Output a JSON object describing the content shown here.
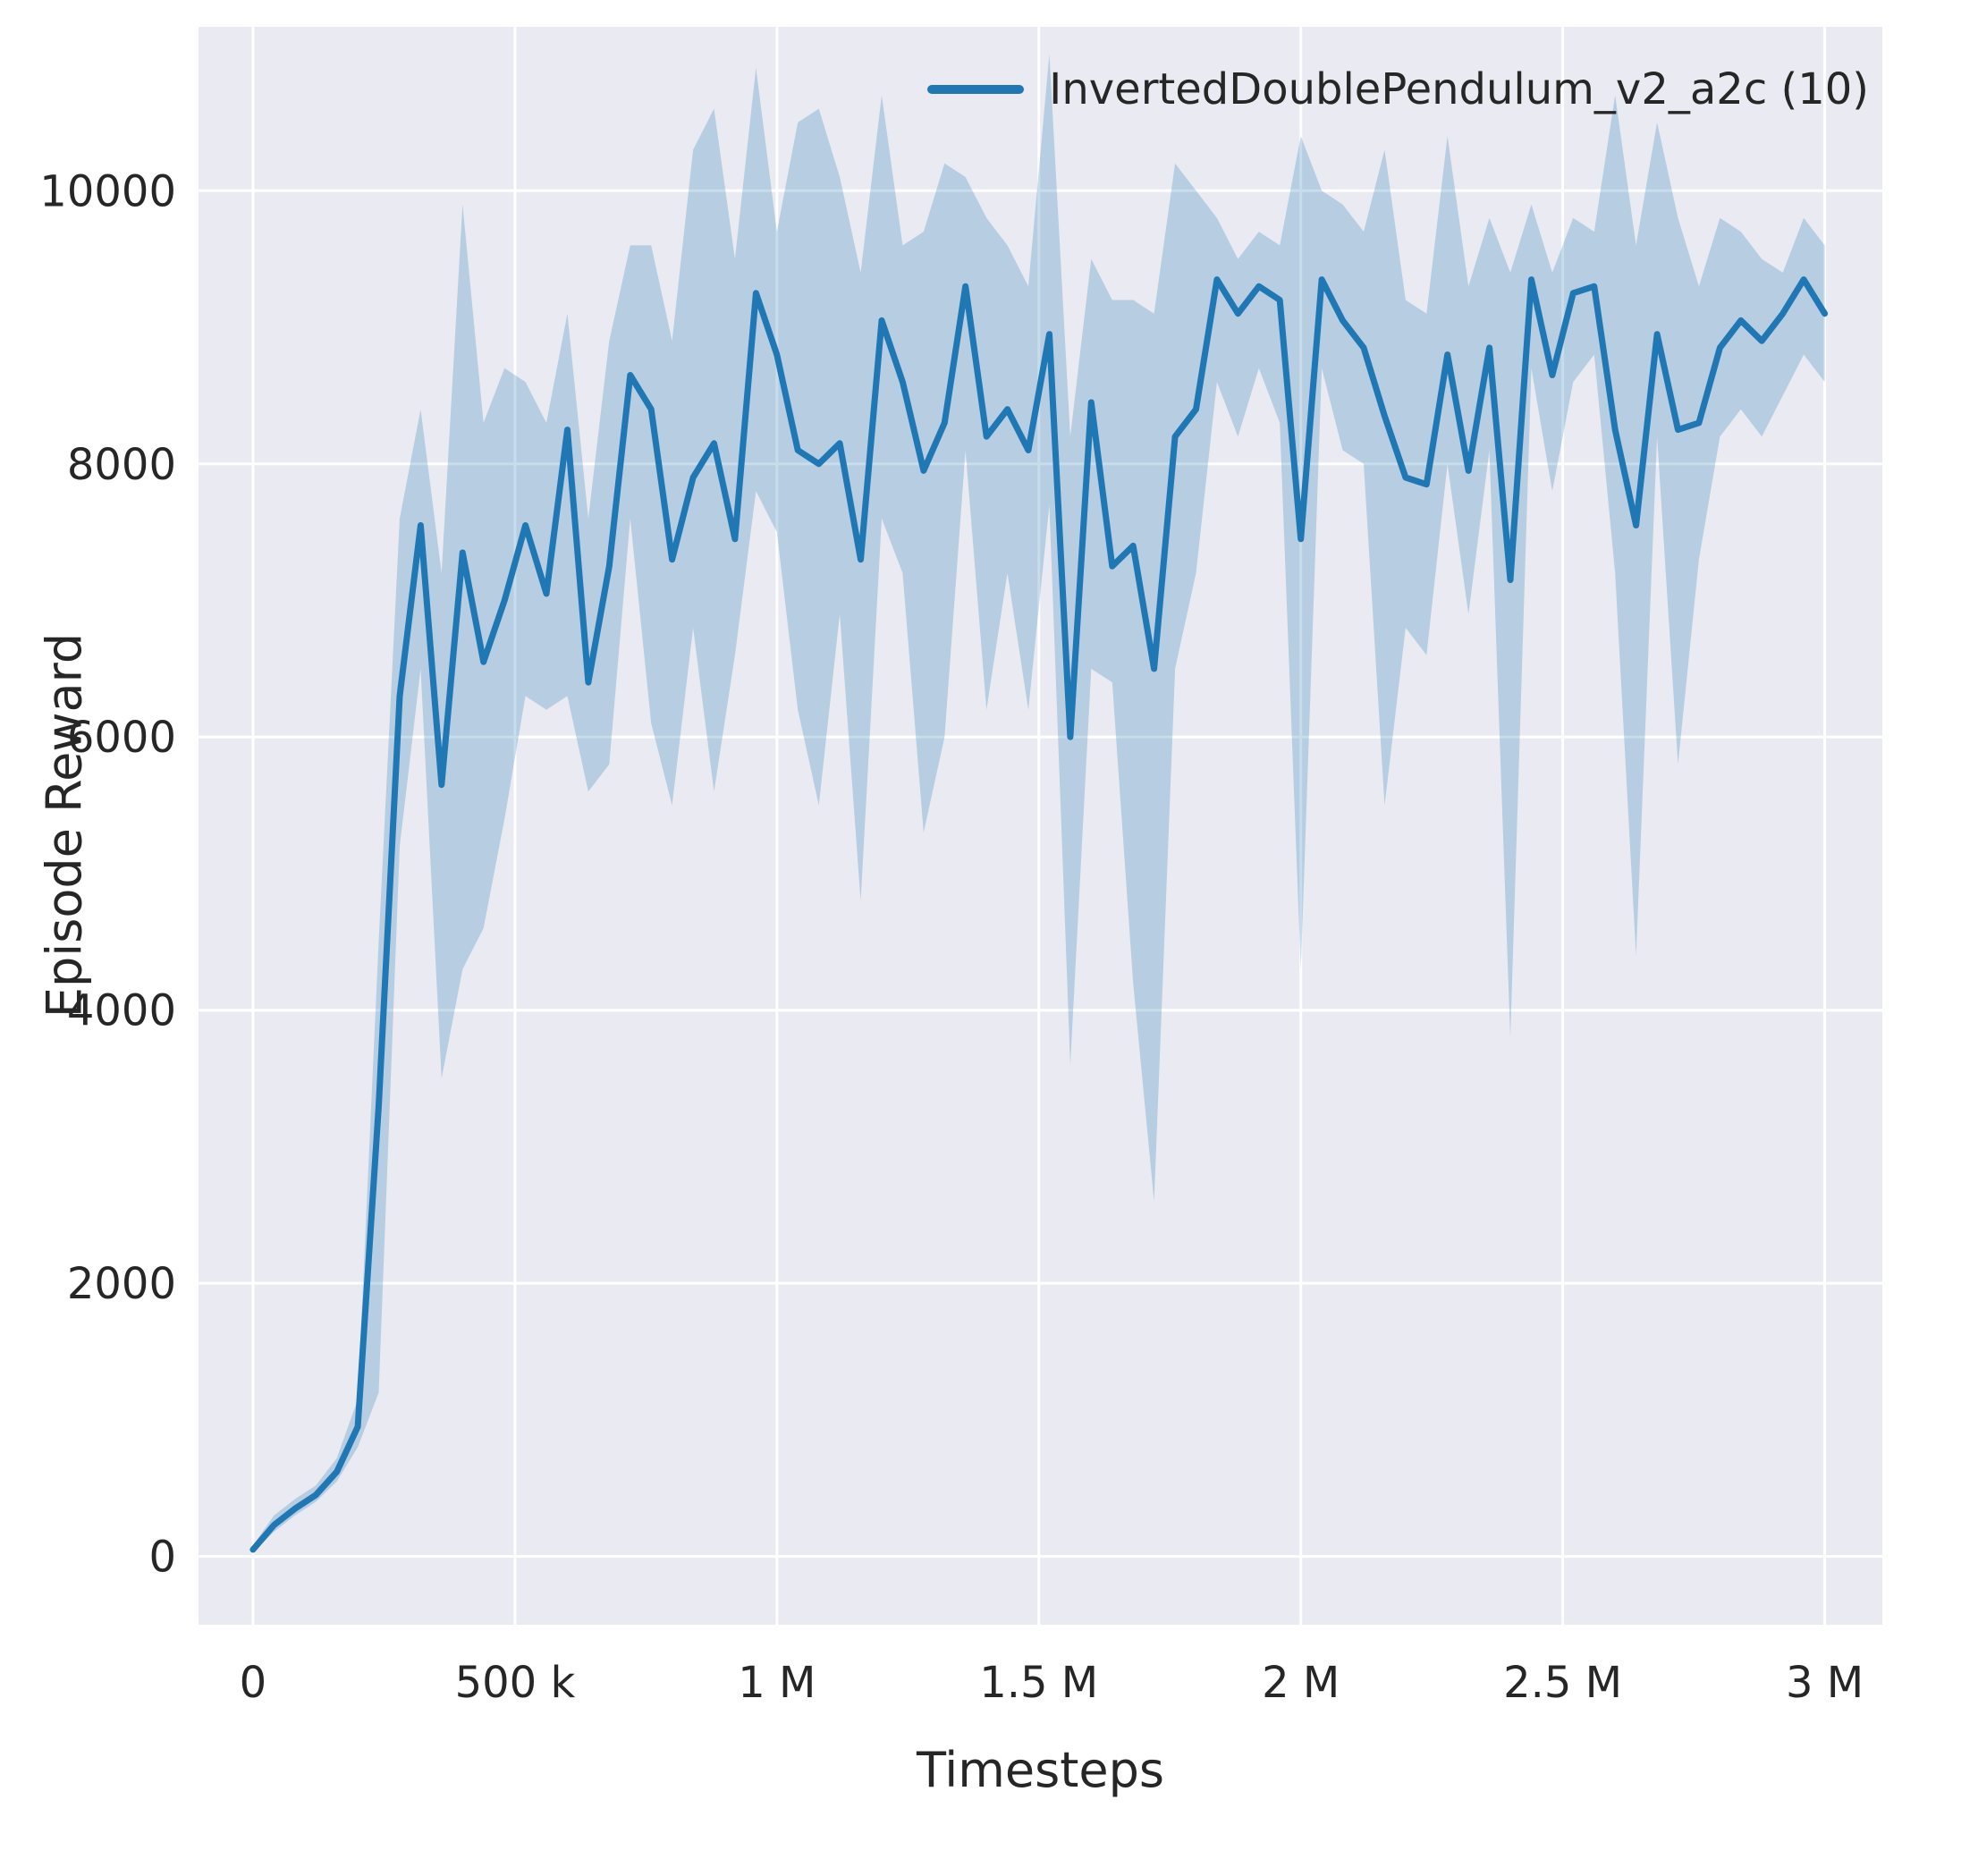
{
  "page": {
    "background": "#ffffff"
  },
  "chart_data": {
    "type": "line",
    "title": "",
    "xlabel": "Timesteps",
    "ylabel": "Episode Reward",
    "grid": true,
    "plot_background": "#eaeaf2",
    "grid_color": "#ffffff",
    "text_color": "#262626",
    "xlim": [
      -104000,
      3110000
    ],
    "ylim": [
      -500,
      11200
    ],
    "x_tick_values": [
      0,
      500000,
      1000000,
      1500000,
      2000000,
      2500000,
      3000000
    ],
    "x_tick_labels": [
      "0",
      "500 k",
      "1 M",
      "1.5 M",
      "2 M",
      "2.5 M",
      "3 M"
    ],
    "y_tick_values": [
      0,
      2000,
      4000,
      6000,
      8000,
      10000
    ],
    "y_tick_labels": [
      "0",
      "2000",
      "4000",
      "6000",
      "8000",
      "10000"
    ],
    "legend_position": "upper right",
    "legend": [
      {
        "label": "InvertedDoublePendulum_v2_a2c (10)",
        "color": "#1f77b4"
      }
    ],
    "series": [
      {
        "name": "InvertedDoublePendulum_v2_a2c (10)",
        "color": "#1f77b4",
        "band_color": "#1f77b4",
        "band_opacity": 0.25,
        "x": [
          0,
          40000,
          80000,
          120000,
          160000,
          200000,
          240000,
          280000,
          320000,
          360000,
          400000,
          440000,
          480000,
          520000,
          560000,
          600000,
          640000,
          680000,
          720000,
          760000,
          800000,
          840000,
          880000,
          920000,
          960000,
          1000000,
          1040000,
          1080000,
          1120000,
          1160000,
          1200000,
          1240000,
          1280000,
          1320000,
          1360000,
          1400000,
          1440000,
          1480000,
          1520000,
          1560000,
          1600000,
          1640000,
          1680000,
          1720000,
          1760000,
          1800000,
          1840000,
          1880000,
          1920000,
          1960000,
          2000000,
          2040000,
          2080000,
          2120000,
          2160000,
          2200000,
          2240000,
          2280000,
          2320000,
          2360000,
          2400000,
          2440000,
          2480000,
          2520000,
          2560000,
          2600000,
          2640000,
          2680000,
          2720000,
          2760000,
          2800000,
          2840000,
          2880000,
          2920000,
          2960000,
          3000000
        ],
        "mean": [
          50,
          230,
          350,
          450,
          620,
          950,
          3300,
          6300,
          7550,
          5650,
          7350,
          6550,
          7000,
          7550,
          7050,
          8250,
          6400,
          7250,
          8650,
          8400,
          7300,
          7900,
          8150,
          7450,
          9250,
          8800,
          8100,
          8000,
          8150,
          7300,
          9050,
          8600,
          7950,
          8300,
          9300,
          8200,
          8400,
          8100,
          8950,
          6000,
          8450,
          7250,
          7400,
          6500,
          8200,
          8400,
          9350,
          9100,
          9300,
          9200,
          7450,
          9350,
          9050,
          8850,
          8350,
          7900,
          7850,
          8800,
          7950,
          8850,
          7150,
          9350,
          8650,
          9250,
          9300,
          8250,
          7550,
          8950,
          8250,
          8300,
          8850,
          9050,
          8900,
          9100,
          9350,
          9100
        ],
        "band_low": [
          30,
          180,
          300,
          400,
          550,
          800,
          1200,
          5200,
          6500,
          3500,
          4300,
          4600,
          5400,
          6300,
          6200,
          6300,
          5600,
          5800,
          7600,
          6100,
          5500,
          6800,
          5600,
          6600,
          7800,
          7500,
          6200,
          5500,
          6900,
          4800,
          7600,
          7200,
          5300,
          6000,
          8100,
          6200,
          7200,
          6200,
          7700,
          3600,
          6500,
          6400,
          4200,
          2600,
          6500,
          7200,
          8600,
          8200,
          8700,
          8300,
          4300,
          8700,
          8100,
          8000,
          5500,
          6800,
          6600,
          8000,
          6900,
          8100,
          3800,
          8700,
          7800,
          8600,
          8800,
          7200,
          4400,
          8200,
          5800,
          7300,
          8200,
          8400,
          8200,
          8500,
          8800,
          8600
        ],
        "band_high": [
          80,
          300,
          420,
          520,
          720,
          1150,
          4500,
          7600,
          8400,
          7200,
          9900,
          8300,
          8700,
          8600,
          8300,
          9100,
          7600,
          8900,
          9600,
          9600,
          8900,
          10300,
          10600,
          9500,
          10900,
          9700,
          10500,
          10600,
          10100,
          9400,
          10700,
          9600,
          9700,
          10200,
          10100,
          9800,
          9600,
          9300,
          11000,
          8200,
          9500,
          9200,
          9200,
          9100,
          10200,
          10000,
          9800,
          9500,
          9700,
          9600,
          10400,
          10000,
          9900,
          9700,
          10300,
          9200,
          9100,
          10400,
          9300,
          9800,
          9400,
          9900,
          9400,
          9800,
          9700,
          10700,
          9600,
          10500,
          9800,
          9300,
          9800,
          9700,
          9500,
          9400,
          9800,
          9600
        ]
      }
    ]
  }
}
